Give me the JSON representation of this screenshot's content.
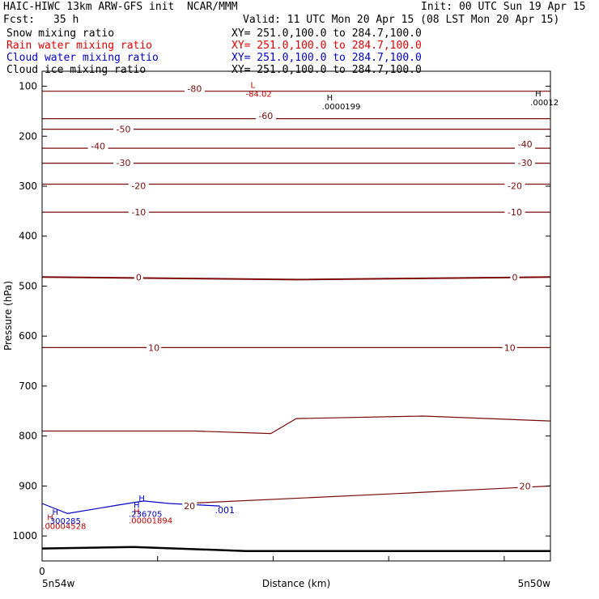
{
  "header": {
    "title": "HAIC-HIWC 13km ARW-GFS init  NCAR/MMM",
    "init": "Init: 00 UTC Sun 19 Apr 15",
    "fcst_label": "Fcst:",
    "fcst_value": "35 h",
    "valid": "Valid: 11 UTC Mon 20 Apr 15 (08 LST Mon 20 Apr 15)"
  },
  "fields": [
    {
      "name": "Snow mixing ratio",
      "xy": "XY= 251.0,100.0 to 284.7,100.0",
      "color": "#000000"
    },
    {
      "name": "Rain water mixing ratio",
      "xy": "XY= 251.0,100.0 to 284.7,100.0",
      "color": "#e00000"
    },
    {
      "name": "Cloud water mixing ratio",
      "xy": "XY= 251.0,100.0 to 284.7,100.0",
      "color": "#0000c8"
    },
    {
      "name": "Cloud ice mixing ratio",
      "xy": "XY= 251.0,100.0 to 284.7,100.0",
      "color": "#000000"
    }
  ],
  "chart_data": {
    "type": "line",
    "xlabel": "Distance (km)",
    "ylabel": "Pressure (hPa)",
    "x_ticks": [
      "0"
    ],
    "x_end_labels": [
      "5n54w",
      "5n50w"
    ],
    "y_ticks": [
      100,
      200,
      300,
      400,
      500,
      600,
      700,
      800,
      900,
      1000
    ],
    "ylim": [
      1050,
      70
    ],
    "colors": {
      "temp": "#7a0a0a",
      "cloud": "#0000c8",
      "rain": "#c00000",
      "terrain": "#000000"
    },
    "temperature_contours": [
      {
        "label": "-80",
        "points": [
          [
            0,
            110
          ],
          [
            1,
            110
          ]
        ]
      },
      {
        "label": "-60",
        "points": [
          [
            0,
            165
          ],
          [
            1,
            165
          ]
        ]
      },
      {
        "label": "-50",
        "points": [
          [
            0,
            186
          ],
          [
            1,
            186
          ]
        ]
      },
      {
        "label": "-40",
        "points": [
          [
            0,
            224
          ],
          [
            1,
            224
          ]
        ]
      },
      {
        "label": "-30",
        "points": [
          [
            0,
            254
          ],
          [
            1,
            254
          ]
        ]
      },
      {
        "label": "-20",
        "points": [
          [
            0,
            296
          ],
          [
            1,
            296
          ]
        ]
      },
      {
        "label": "-10",
        "points": [
          [
            0,
            352
          ],
          [
            1,
            352
          ]
        ]
      },
      {
        "label": "0",
        "points": [
          [
            0,
            482
          ],
          [
            0.5,
            487
          ],
          [
            1,
            482
          ]
        ]
      },
      {
        "label": "10",
        "points": [
          [
            0,
            623
          ],
          [
            1,
            623
          ]
        ]
      },
      {
        "label": "",
        "points": [
          [
            0,
            790
          ],
          [
            0.3,
            790
          ],
          [
            0.45,
            795
          ],
          [
            0.5,
            765
          ],
          [
            0.75,
            760
          ],
          [
            1,
            770
          ]
        ]
      },
      {
        "label": "20",
        "points": [
          [
            0.3,
            934
          ],
          [
            0.7,
            915
          ],
          [
            1,
            900
          ]
        ]
      }
    ],
    "temperature_labels": [
      {
        "text": "-80",
        "x": 0.3,
        "p": 105
      },
      {
        "text": "-60",
        "x": 0.44,
        "p": 159
      },
      {
        "text": "-50",
        "x": 0.16,
        "p": 186
      },
      {
        "text": "-40",
        "x": 0.11,
        "p": 220
      },
      {
        "text": "-40",
        "x": 0.95,
        "p": 216
      },
      {
        "text": "-30",
        "x": 0.16,
        "p": 253
      },
      {
        "text": "-30",
        "x": 0.95,
        "p": 253
      },
      {
        "text": "-20",
        "x": 0.19,
        "p": 299
      },
      {
        "text": "-20",
        "x": 0.93,
        "p": 299
      },
      {
        "text": "-10",
        "x": 0.19,
        "p": 352
      },
      {
        "text": "-10",
        "x": 0.93,
        "p": 352
      },
      {
        "text": "0",
        "x": 0.19,
        "p": 482
      },
      {
        "text": "0",
        "x": 0.93,
        "p": 482
      },
      {
        "text": "10",
        "x": 0.22,
        "p": 623
      },
      {
        "text": "10",
        "x": 0.92,
        "p": 623
      },
      {
        "text": "20",
        "x": 0.95,
        "p": 900
      },
      {
        "text": "20",
        "x": 0.29,
        "p": 940
      }
    ],
    "extrema": [
      {
        "symbol": "L",
        "value": "-84.02",
        "x": 0.41,
        "p": 103,
        "color": "#c00000"
      },
      {
        "symbol": "H",
        "value": ".0000199",
        "x": 0.56,
        "p": 128,
        "color": "#000000"
      },
      {
        "symbol": "H",
        "value": ".00012",
        "x": 0.97,
        "p": 120,
        "color": "#000000"
      },
      {
        "symbol": "H",
        "value": ".00004528",
        "x": 0.01,
        "p": 968,
        "color": "#c00000"
      },
      {
        "symbol": "H",
        "value": ".300285",
        "x": 0.02,
        "p": 958,
        "color": "#0000c8"
      },
      {
        "symbol": "H",
        "value": ".00001894",
        "x": 0.18,
        "p": 957,
        "color": "#c00000"
      },
      {
        "symbol": "H",
        "value": ".236705",
        "x": 0.18,
        "p": 944,
        "color": "#0000c8"
      },
      {
        "symbol": "H",
        "value": "",
        "x": 0.19,
        "p": 930,
        "color": "#0000c8"
      }
    ],
    "cloud_water_contours": [
      {
        "label": ".001",
        "points": [
          [
            0,
            935
          ],
          [
            0.05,
            955
          ],
          [
            0.15,
            938
          ],
          [
            0.2,
            930
          ],
          [
            0.25,
            935
          ],
          [
            0.35,
            940
          ]
        ]
      }
    ],
    "cloud_water_label": {
      "text": ".001",
      "x": 0.34,
      "p": 948
    },
    "terrain": {
      "points": [
        [
          0,
          1025
        ],
        [
          0.18,
          1022
        ],
        [
          0.4,
          1030
        ],
        [
          0.7,
          1030
        ],
        [
          1,
          1030
        ]
      ]
    }
  }
}
